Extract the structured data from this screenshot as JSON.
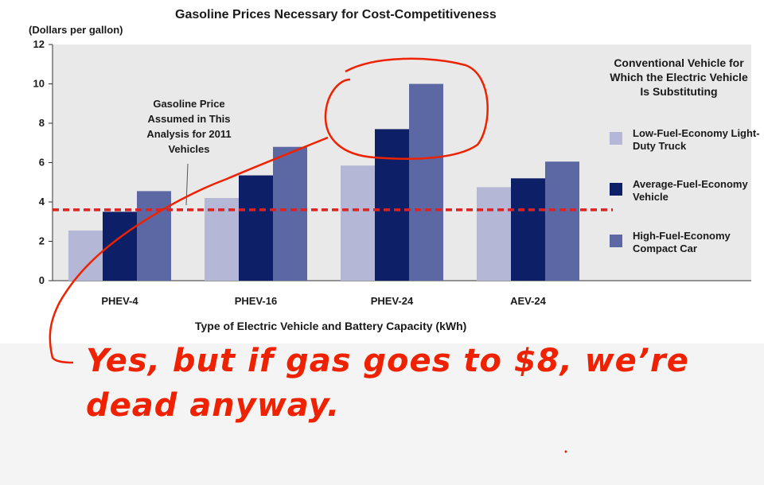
{
  "chart_data": {
    "type": "bar",
    "title": "Gasoline Prices Necessary for Cost-Competitiveness",
    "ylabel": "(Dollars per gallon)",
    "xlabel": "Type of Electric Vehicle and Battery Capacity (kWh)",
    "categories": [
      "PHEV-4",
      "PHEV-16",
      "PHEV-24",
      "AEV-24"
    ],
    "ylim": [
      0,
      12
    ],
    "yticks": [
      0,
      2,
      4,
      6,
      8,
      10,
      12
    ],
    "legend_title": "Conventional Vehicle for Which the Electric Vehicle Is Substituting",
    "legend_position": "right",
    "series": [
      {
        "name": "Low-Fuel-Economy Light-Duty Truck",
        "color": "#b4b8d6",
        "values": [
          2.55,
          4.2,
          5.85,
          4.75
        ]
      },
      {
        "name": "Average-Fuel-Economy Vehicle",
        "color": "#0d1f66",
        "values": [
          3.5,
          5.35,
          7.7,
          5.2
        ]
      },
      {
        "name": "High-Fuel-Economy Compact Car",
        "color": "#5c68a4",
        "values": [
          4.55,
          6.8,
          10.0,
          6.05
        ]
      }
    ],
    "reference_line": {
      "value": 3.6,
      "color": "#dd2222"
    },
    "annotation": "Gasoline Price Assumed in This Analysis for 2011 Vehicles",
    "grid": false
  },
  "overlay": {
    "caption_line1": "Yes, but if gas goes to $8, we’re",
    "caption_line2": "dead anyway.",
    "color": "#ee2200"
  }
}
